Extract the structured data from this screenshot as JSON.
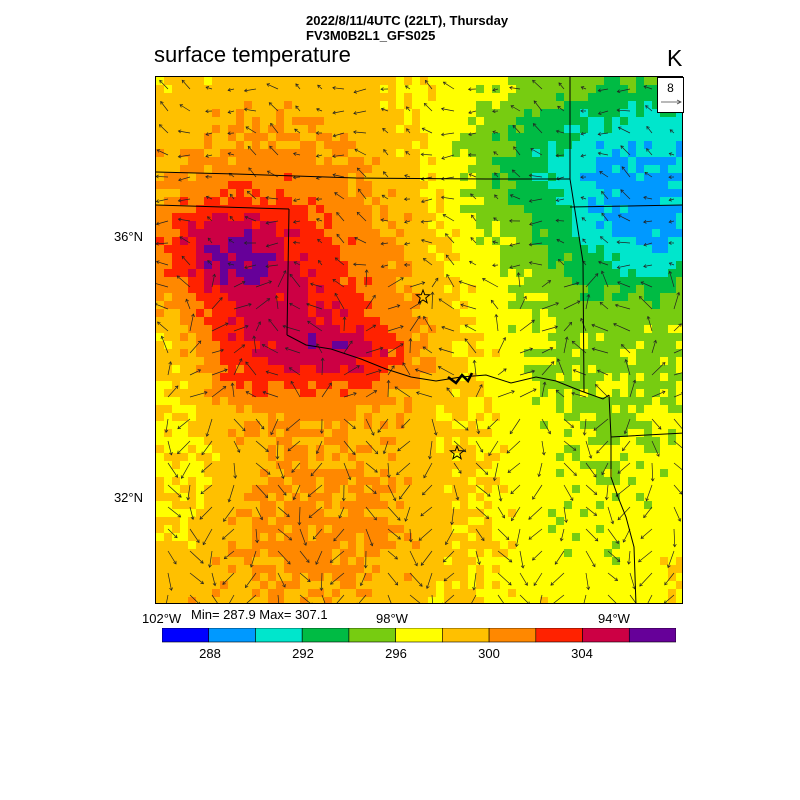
{
  "header": {
    "line1": "2022/8/11/4UTC (22LT), Thursday",
    "line2": "FV3M0B2L1_GFS025"
  },
  "map_title": "surface temperature",
  "units": "K",
  "reference_vector": {
    "value": "8"
  },
  "axes": {
    "lat_labels": [
      "36°N",
      "32°N"
    ],
    "lon_labels": [
      "102°W",
      "98°W",
      "94°W"
    ]
  },
  "stats": {
    "text": "Min= 287.9 Max= 307.1",
    "min": 287.9,
    "max": 307.1
  },
  "colorbar": {
    "colors": [
      "#0000ff",
      "#0099ff",
      "#00e6cc",
      "#00bb44",
      "#77cc11",
      "#ffff00",
      "#ffc000",
      "#ff8800",
      "#ff2200",
      "#cc0044",
      "#660099"
    ],
    "tick_labels": [
      "288",
      "292",
      "296",
      "300",
      "304"
    ]
  },
  "chart_data": {
    "type": "heatmap",
    "title": "surface temperature",
    "units": "K",
    "field_range": [
      287.9,
      307.1
    ],
    "levels": [
      288,
      290,
      292,
      294,
      296,
      298,
      300,
      302,
      304,
      306
    ],
    "lat_range_deg_n": [
      30,
      38
    ],
    "lon_range_deg_w": [
      93,
      103
    ],
    "markers": [
      "star",
      "star"
    ]
  }
}
